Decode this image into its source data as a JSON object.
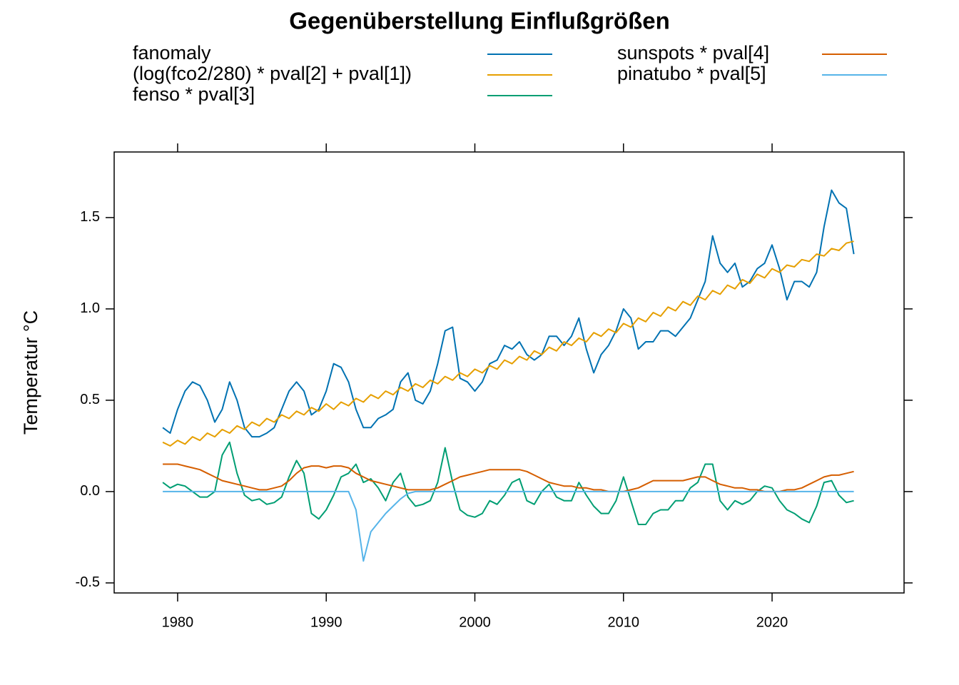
{
  "chart_data": {
    "type": "line",
    "title": "Gegenüberstellung Einflußgrößen",
    "ylabel": "Temperatur °C",
    "x": [
      1979,
      1979.5,
      1980,
      1980.5,
      1981,
      1981.5,
      1982,
      1982.5,
      1983,
      1983.5,
      1984,
      1984.5,
      1985,
      1985.5,
      1986,
      1986.5,
      1987,
      1987.5,
      1988,
      1988.5,
      1989,
      1989.5,
      1990,
      1990.5,
      1991,
      1991.5,
      1992,
      1992.5,
      1993,
      1993.5,
      1994,
      1994.5,
      1995,
      1995.5,
      1996,
      1996.5,
      1997,
      1997.5,
      1998,
      1998.5,
      1999,
      1999.5,
      2000,
      2000.5,
      2001,
      2001.5,
      2002,
      2002.5,
      2003,
      2003.5,
      2004,
      2004.5,
      2005,
      2005.5,
      2006,
      2006.5,
      2007,
      2007.5,
      2008,
      2008.5,
      2009,
      2009.5,
      2010,
      2010.5,
      2011,
      2011.5,
      2012,
      2012.5,
      2013,
      2013.5,
      2014,
      2014.5,
      2015,
      2015.5,
      2016,
      2016.5,
      2017,
      2017.5,
      2018,
      2018.5,
      2019,
      2019.5,
      2020,
      2020.5,
      2021,
      2021.5,
      2022,
      2022.5,
      2023,
      2023.5,
      2024,
      2024.5,
      2025,
      2025.5
    ],
    "series": [
      {
        "name": "fanomaly",
        "color": "#0072B2",
        "values": [
          0.35,
          0.32,
          0.45,
          0.55,
          0.6,
          0.58,
          0.5,
          0.38,
          0.45,
          0.6,
          0.5,
          0.35,
          0.3,
          0.3,
          0.32,
          0.35,
          0.45,
          0.55,
          0.6,
          0.55,
          0.42,
          0.45,
          0.55,
          0.7,
          0.68,
          0.6,
          0.45,
          0.35,
          0.35,
          0.4,
          0.42,
          0.45,
          0.6,
          0.65,
          0.5,
          0.48,
          0.55,
          0.7,
          0.88,
          0.9,
          0.62,
          0.6,
          0.55,
          0.6,
          0.7,
          0.72,
          0.8,
          0.78,
          0.82,
          0.75,
          0.72,
          0.75,
          0.85,
          0.85,
          0.8,
          0.85,
          0.95,
          0.78,
          0.65,
          0.75,
          0.8,
          0.88,
          1.0,
          0.95,
          0.78,
          0.82,
          0.82,
          0.88,
          0.88,
          0.85,
          0.9,
          0.95,
          1.05,
          1.15,
          1.4,
          1.25,
          1.2,
          1.25,
          1.12,
          1.15,
          1.22,
          1.25,
          1.35,
          1.22,
          1.05,
          1.15,
          1.15,
          1.12,
          1.2,
          1.45,
          1.65,
          1.58,
          1.55,
          1.3
        ]
      },
      {
        "name": "(log(fco2/280) * pval[2] + pval[1])",
        "color": "#E69F00",
        "values": [
          0.27,
          0.25,
          0.28,
          0.26,
          0.3,
          0.28,
          0.32,
          0.3,
          0.34,
          0.32,
          0.36,
          0.34,
          0.38,
          0.36,
          0.4,
          0.38,
          0.42,
          0.4,
          0.44,
          0.42,
          0.46,
          0.44,
          0.48,
          0.45,
          0.49,
          0.47,
          0.51,
          0.49,
          0.53,
          0.51,
          0.55,
          0.53,
          0.57,
          0.55,
          0.59,
          0.57,
          0.61,
          0.59,
          0.63,
          0.61,
          0.65,
          0.63,
          0.67,
          0.65,
          0.69,
          0.67,
          0.72,
          0.7,
          0.74,
          0.72,
          0.77,
          0.75,
          0.79,
          0.77,
          0.82,
          0.8,
          0.84,
          0.82,
          0.87,
          0.85,
          0.89,
          0.87,
          0.92,
          0.9,
          0.95,
          0.93,
          0.98,
          0.96,
          1.01,
          0.99,
          1.04,
          1.02,
          1.07,
          1.05,
          1.1,
          1.08,
          1.13,
          1.11,
          1.16,
          1.14,
          1.19,
          1.17,
          1.22,
          1.2,
          1.24,
          1.23,
          1.27,
          1.26,
          1.3,
          1.29,
          1.33,
          1.32,
          1.36,
          1.37
        ]
      },
      {
        "name": "fenso * pval[3]",
        "color": "#009E73",
        "values": [
          0.05,
          0.02,
          0.04,
          0.03,
          0.0,
          -0.03,
          -0.03,
          0.0,
          0.2,
          0.27,
          0.1,
          -0.02,
          -0.05,
          -0.04,
          -0.07,
          -0.06,
          -0.03,
          0.08,
          0.17,
          0.1,
          -0.12,
          -0.15,
          -0.1,
          -0.02,
          0.08,
          0.1,
          0.15,
          0.05,
          0.07,
          0.02,
          -0.05,
          0.05,
          0.1,
          -0.03,
          -0.08,
          -0.07,
          -0.05,
          0.05,
          0.24,
          0.05,
          -0.1,
          -0.13,
          -0.14,
          -0.12,
          -0.05,
          -0.07,
          -0.02,
          0.05,
          0.07,
          -0.05,
          -0.07,
          0.0,
          0.04,
          -0.03,
          -0.05,
          -0.05,
          0.05,
          -0.02,
          -0.08,
          -0.12,
          -0.12,
          -0.05,
          0.08,
          -0.05,
          -0.18,
          -0.18,
          -0.12,
          -0.1,
          -0.1,
          -0.05,
          -0.05,
          0.02,
          0.05,
          0.15,
          0.15,
          -0.05,
          -0.1,
          -0.05,
          -0.07,
          -0.05,
          0.0,
          0.03,
          0.02,
          -0.05,
          -0.1,
          -0.12,
          -0.15,
          -0.17,
          -0.08,
          0.05,
          0.06,
          -0.02,
          -0.06,
          -0.05
        ]
      },
      {
        "name": "sunspots * pval[4]",
        "color": "#D55E00",
        "values": [
          0.15,
          0.15,
          0.15,
          0.14,
          0.13,
          0.12,
          0.1,
          0.08,
          0.06,
          0.05,
          0.04,
          0.03,
          0.02,
          0.01,
          0.01,
          0.02,
          0.03,
          0.06,
          0.1,
          0.13,
          0.14,
          0.14,
          0.13,
          0.14,
          0.14,
          0.13,
          0.1,
          0.08,
          0.06,
          0.05,
          0.04,
          0.03,
          0.02,
          0.01,
          0.01,
          0.01,
          0.01,
          0.02,
          0.04,
          0.06,
          0.08,
          0.09,
          0.1,
          0.11,
          0.12,
          0.12,
          0.12,
          0.12,
          0.12,
          0.11,
          0.09,
          0.07,
          0.05,
          0.04,
          0.03,
          0.03,
          0.02,
          0.02,
          0.01,
          0.01,
          0.0,
          0.0,
          0.0,
          0.01,
          0.02,
          0.04,
          0.06,
          0.06,
          0.06,
          0.06,
          0.06,
          0.07,
          0.08,
          0.08,
          0.06,
          0.04,
          0.03,
          0.02,
          0.02,
          0.01,
          0.01,
          0.0,
          0.0,
          0.0,
          0.01,
          0.01,
          0.02,
          0.04,
          0.06,
          0.08,
          0.09,
          0.09,
          0.1,
          0.11
        ]
      },
      {
        "name": "pinatubo * pval[5]",
        "color": "#56B4E9",
        "values": [
          0,
          0,
          0,
          0,
          0,
          0,
          0,
          0,
          0,
          0,
          0,
          0,
          0,
          0,
          0,
          0,
          0,
          0,
          0,
          0,
          0,
          0,
          0,
          0,
          0,
          0,
          -0.1,
          -0.38,
          -0.22,
          -0.17,
          -0.12,
          -0.08,
          -0.04,
          -0.01,
          0,
          0,
          0,
          0,
          0,
          0,
          0,
          0,
          0,
          0,
          0,
          0,
          0,
          0,
          0,
          0,
          0,
          0,
          0,
          0,
          0,
          0,
          0,
          0,
          0,
          0,
          0,
          0,
          0,
          0,
          0,
          0,
          0,
          0,
          0,
          0,
          0,
          0,
          0,
          0,
          0,
          0,
          0,
          0,
          0,
          0,
          0,
          0,
          0,
          0,
          0,
          0,
          0,
          0,
          0,
          0,
          0,
          0,
          0,
          0
        ]
      }
    ],
    "xlim": [
      1975.73,
      2028.88
    ],
    "xticks": [
      1980,
      1990,
      2000,
      2010,
      2020
    ],
    "ylim": [
      -0.555,
      1.859
    ],
    "yticks": [
      -0.5,
      {
        "value": 0,
        "label": "0.0"
      },
      0.5,
      {
        "value": 1,
        "label": "1.0"
      },
      1.5
    ]
  }
}
